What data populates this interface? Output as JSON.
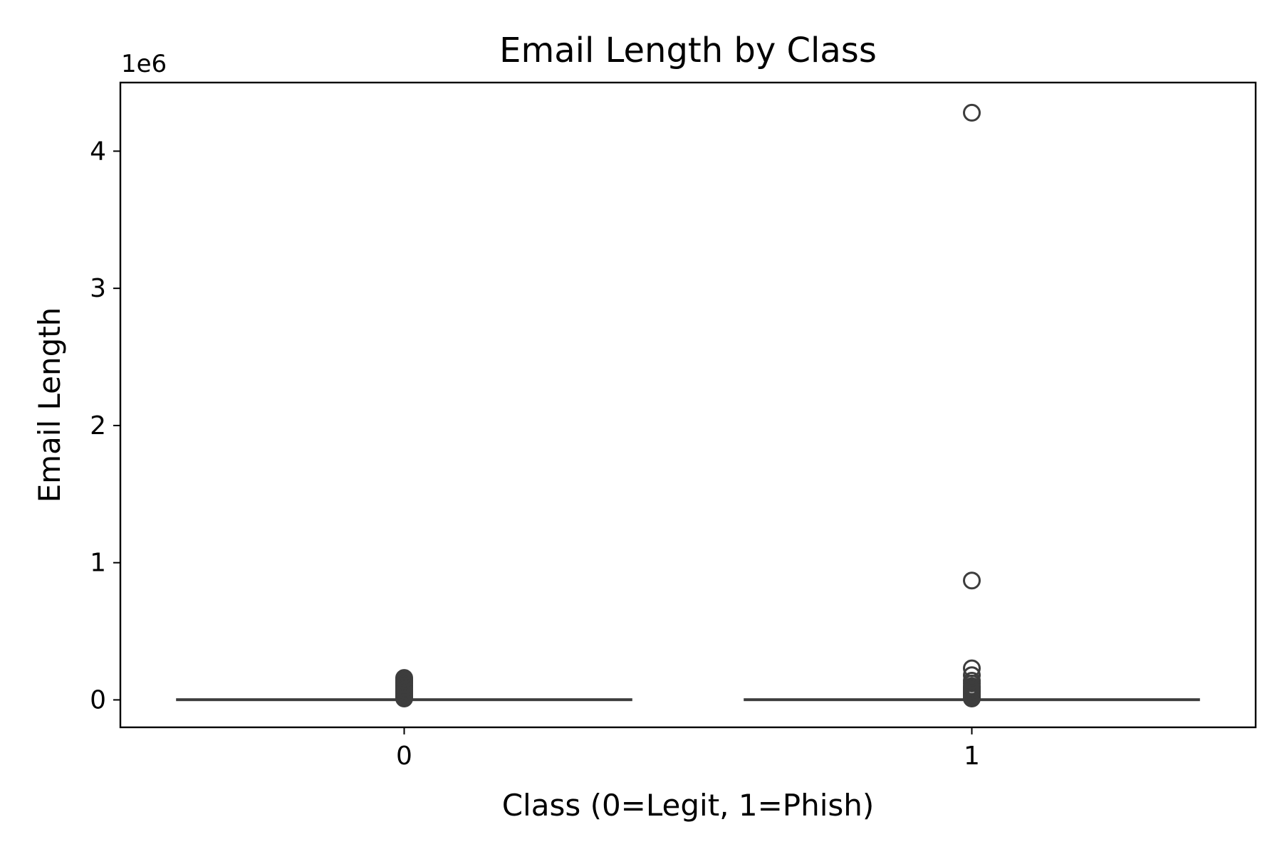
{
  "chart_data": {
    "type": "box",
    "title": "Email Length by Class",
    "xlabel": "Class (0=Legit, 1=Phish)",
    "ylabel": "Email Length",
    "y_offset_label": "1e6",
    "categories": [
      "0",
      "1"
    ],
    "ylim": [
      -200000,
      4500000
    ],
    "yticks": [
      0,
      1000000,
      2000000,
      3000000,
      4000000
    ],
    "ytick_labels": [
      "0",
      "1",
      "2",
      "3",
      "4"
    ],
    "grid": false,
    "boxes": [
      {
        "category": "0",
        "whisker_low": 0,
        "q1": 1000,
        "median": 2000,
        "q3": 4000,
        "whisker_high": 9000,
        "outliers": [
          10000,
          15000,
          20000,
          25000,
          30000,
          40000,
          50000,
          60000,
          70000,
          80000,
          90000,
          100000,
          110000,
          120000,
          130000,
          140000,
          150000,
          160000
        ]
      },
      {
        "category": "1",
        "whisker_low": 0,
        "q1": 1000,
        "median": 2000,
        "q3": 4000,
        "whisker_high": 9000,
        "outliers": [
          10000,
          20000,
          30000,
          40000,
          50000,
          60000,
          70000,
          80000,
          90000,
          100000,
          120000,
          140000,
          180000,
          230000,
          870000,
          4280000
        ]
      }
    ],
    "colors": {
      "box": "#3d3d3d",
      "axis": "#000000"
    }
  }
}
